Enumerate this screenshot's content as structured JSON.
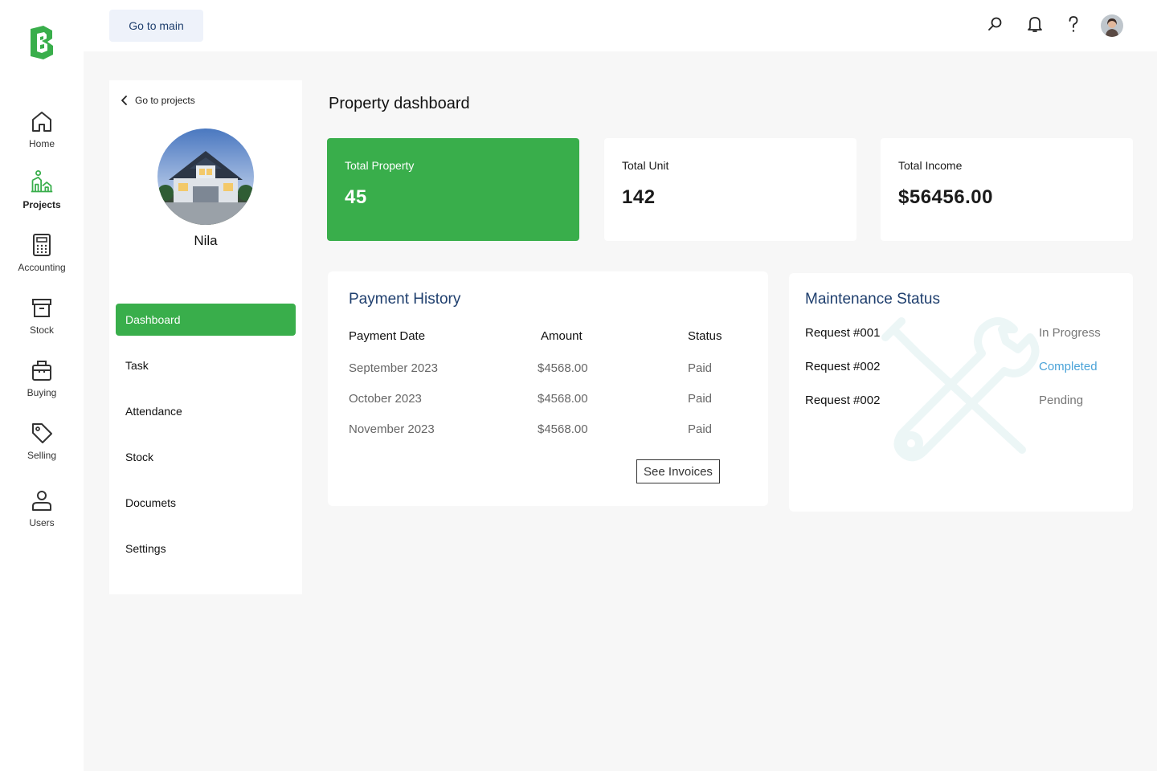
{
  "colors": {
    "brand_green": "#39ae4b",
    "title_blue": "#1f3f6e",
    "completed_blue": "#4aa3d8"
  },
  "rail": {
    "items": [
      {
        "label": "Home",
        "icon": "home-icon"
      },
      {
        "label": "Projects",
        "icon": "projects-icon"
      },
      {
        "label": "Accounting",
        "icon": "calculator-icon"
      },
      {
        "label": "Stock",
        "icon": "archive-box-icon"
      },
      {
        "label": "Buying",
        "icon": "shopping-bag-icon"
      },
      {
        "label": "Selling",
        "icon": "tag-icon"
      },
      {
        "label": "Users",
        "icon": "user-icon"
      }
    ]
  },
  "topbar": {
    "go_main_label": "Go to main"
  },
  "project": {
    "back_label": "Go to projects",
    "name": "Nila",
    "nav": [
      "Dashboard",
      "Task",
      "Attendance",
      "Stock",
      "Documets",
      "Settings"
    ]
  },
  "page": {
    "title": "Property dashboard"
  },
  "stats": [
    {
      "label": "Total Property",
      "value": "45"
    },
    {
      "label": "Total Unit",
      "value": "142"
    },
    {
      "label": "Total Income",
      "value": "$56456.00"
    }
  ],
  "payment_history": {
    "title": "Payment History",
    "headers": [
      "Payment Date",
      "Amount",
      "Status"
    ],
    "rows": [
      {
        "date": "September 2023",
        "amount": "$4568.00",
        "status": "Paid"
      },
      {
        "date": "October 2023",
        "amount": "$4568.00",
        "status": "Paid"
      },
      {
        "date": "November 2023",
        "amount": "$4568.00",
        "status": "Paid"
      }
    ],
    "button_label": "See Invoices"
  },
  "maintenance": {
    "title": "Maintenance Status",
    "rows": [
      {
        "request": "Request #001",
        "status": "In Progress"
      },
      {
        "request": "Request #002",
        "status": "Completed"
      },
      {
        "request": "Request #002",
        "status": "Pending"
      }
    ]
  }
}
